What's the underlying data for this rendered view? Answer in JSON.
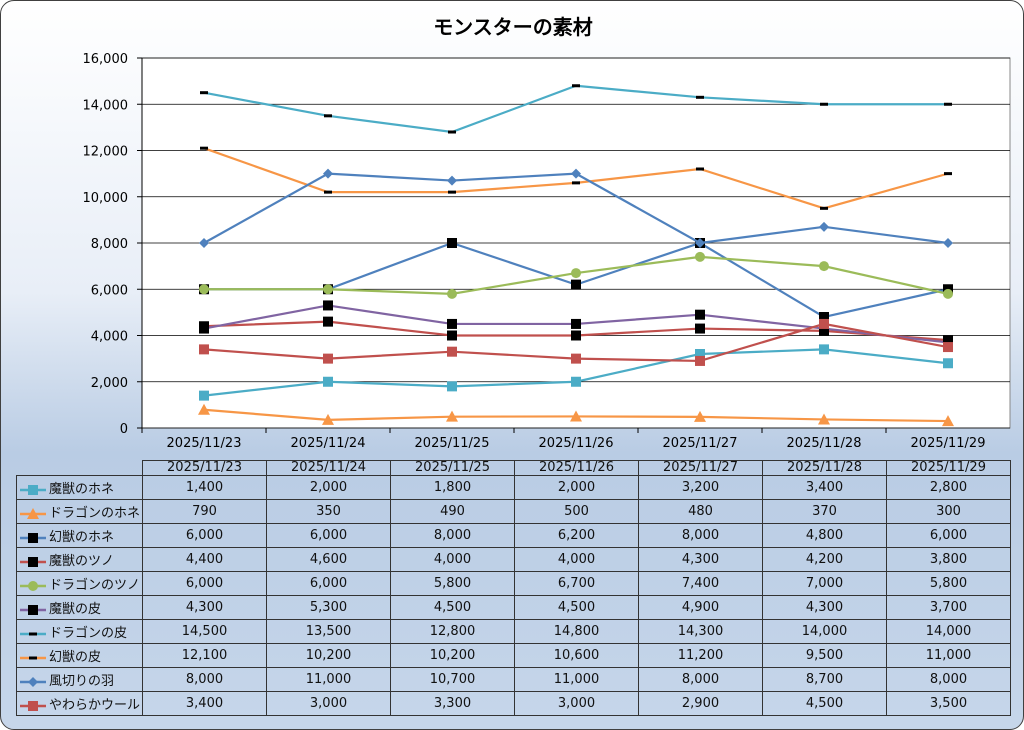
{
  "chart_data": {
    "type": "line",
    "title": "モンスターの素材",
    "categories": [
      "2025/11/23",
      "2025/11/24",
      "2025/11/25",
      "2025/11/26",
      "2025/11/27",
      "2025/11/28",
      "2025/11/29"
    ],
    "ylim": [
      0,
      16000
    ],
    "yticks": [
      "0",
      "2,000",
      "4,000",
      "6,000",
      "8,000",
      "10,000",
      "12,000",
      "14,000",
      "16,000"
    ],
    "grid": true,
    "legend": "table-bottom",
    "series": [
      {
        "name": "魔獣のホネ",
        "color": "#4bacc6",
        "marker": "square",
        "markerColor": "#4bacc6",
        "values": [
          1400,
          2000,
          1800,
          2000,
          3200,
          3400,
          2800
        ],
        "labels": [
          "1,400",
          "2,000",
          "1,800",
          "2,000",
          "3,200",
          "3,400",
          "2,800"
        ]
      },
      {
        "name": "ドラゴンのホネ",
        "color": "#f79646",
        "marker": "triangle",
        "markerColor": "#f79646",
        "values": [
          790,
          350,
          490,
          500,
          480,
          370,
          300
        ],
        "labels": [
          "790",
          "350",
          "490",
          "500",
          "480",
          "370",
          "300"
        ]
      },
      {
        "name": "幻獣のホネ",
        "color": "#4f81bd",
        "marker": "square",
        "markerColor": "#000000",
        "values": [
          6000,
          6000,
          8000,
          6200,
          8000,
          4800,
          6000
        ],
        "labels": [
          "6,000",
          "6,000",
          "8,000",
          "6,200",
          "8,000",
          "4,800",
          "6,000"
        ]
      },
      {
        "name": "魔獣のツノ",
        "color": "#c0504d",
        "marker": "square",
        "markerColor": "#000000",
        "values": [
          4400,
          4600,
          4000,
          4000,
          4300,
          4200,
          3800
        ],
        "labels": [
          "4,400",
          "4,600",
          "4,000",
          "4,000",
          "4,300",
          "4,200",
          "3,800"
        ]
      },
      {
        "name": "ドラゴンのツノ",
        "color": "#9bbb59",
        "marker": "circle",
        "markerColor": "#9bbb59",
        "values": [
          6000,
          6000,
          5800,
          6700,
          7400,
          7000,
          5800
        ],
        "labels": [
          "6,000",
          "6,000",
          "5,800",
          "6,700",
          "7,400",
          "7,000",
          "5,800"
        ]
      },
      {
        "name": "魔獣の皮",
        "color": "#8064a2",
        "marker": "square",
        "markerColor": "#000000",
        "values": [
          4300,
          5300,
          4500,
          4500,
          4900,
          4300,
          3700
        ],
        "labels": [
          "4,300",
          "5,300",
          "4,500",
          "4,500",
          "4,900",
          "4,300",
          "3,700"
        ]
      },
      {
        "name": "ドラゴンの皮",
        "color": "#4bacc6",
        "marker": "dash",
        "markerColor": "#000000",
        "values": [
          14500,
          13500,
          12800,
          14800,
          14300,
          14000,
          14000
        ],
        "labels": [
          "14,500",
          "13,500",
          "12,800",
          "14,800",
          "14,300",
          "14,000",
          "14,000"
        ]
      },
      {
        "name": "幻獣の皮",
        "color": "#f79646",
        "marker": "dash",
        "markerColor": "#000000",
        "values": [
          12100,
          10200,
          10200,
          10600,
          11200,
          9500,
          11000
        ],
        "labels": [
          "12,100",
          "10,200",
          "10,200",
          "10,600",
          "11,200",
          "9,500",
          "11,000"
        ]
      },
      {
        "name": "風切りの羽",
        "color": "#4f81bd",
        "marker": "diamond",
        "markerColor": "#4f81bd",
        "values": [
          8000,
          11000,
          10700,
          11000,
          8000,
          8700,
          8000
        ],
        "labels": [
          "8,000",
          "11,000",
          "10,700",
          "11,000",
          "8,000",
          "8,700",
          "8,000"
        ]
      },
      {
        "name": "やわらかウール",
        "color": "#c0504d",
        "marker": "square",
        "markerColor": "#c0504d",
        "values": [
          3400,
          3000,
          3300,
          3000,
          2900,
          4500,
          3500
        ],
        "labels": [
          "3,400",
          "3,000",
          "3,300",
          "3,000",
          "2,900",
          "4,500",
          "3,500"
        ]
      }
    ]
  }
}
